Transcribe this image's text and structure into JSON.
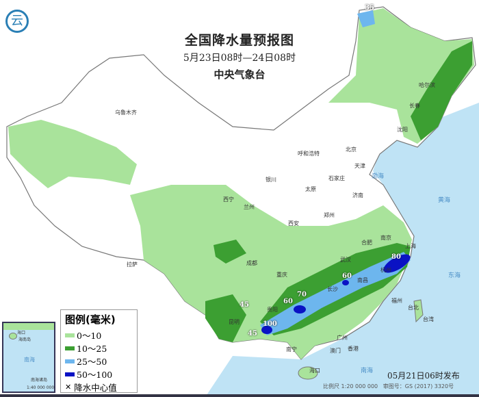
{
  "header": {
    "title": "全国降水量预报图",
    "period": "5月23日08时—24日08时",
    "agency": "中央气象台"
  },
  "legend": {
    "title": "图例(毫米)",
    "items": [
      {
        "label": "0～10",
        "color": "#a9e39b"
      },
      {
        "label": "10～25",
        "color": "#3c9f32"
      },
      {
        "label": "25～50",
        "color": "#6db6ee"
      },
      {
        "label": "50～100",
        "color": "#0a12c4"
      }
    ],
    "center_label": "降水中心值",
    "center_icon": "x-mark-icon"
  },
  "centers": [
    {
      "label": "35"
    },
    {
      "label": "45"
    },
    {
      "label": "45"
    },
    {
      "label": "60"
    },
    {
      "label": "70"
    },
    {
      "label": "100"
    },
    {
      "label": "60"
    },
    {
      "label": "80"
    }
  ],
  "cities": [
    "乌鲁木齐",
    "拉萨",
    "西宁",
    "兰州",
    "银川",
    "呼和浩特",
    "北京",
    "天津",
    "石家庄",
    "太原",
    "济南",
    "郑州",
    "西安",
    "成都",
    "重庆",
    "贵阳",
    "昆明",
    "南宁",
    "广州",
    "香港",
    "澳门",
    "海口",
    "长沙",
    "武汉",
    "南昌",
    "合肥",
    "南京",
    "上海",
    "杭州",
    "福州",
    "台北",
    "台湾",
    "哈尔滨",
    "长春",
    "沈阳"
  ],
  "seas": [
    "渤海",
    "黄海",
    "东海",
    "南海"
  ],
  "inset": {
    "sea": "南海",
    "islands": "南海诸岛",
    "city": "海口",
    "island": "海南岛",
    "scale": "1:40 000 000"
  },
  "footer": {
    "published": "05月21日06时发布",
    "scale": "比例尺 1:20 000 000",
    "map_no": "审图号：GS (2017) 3320号"
  }
}
